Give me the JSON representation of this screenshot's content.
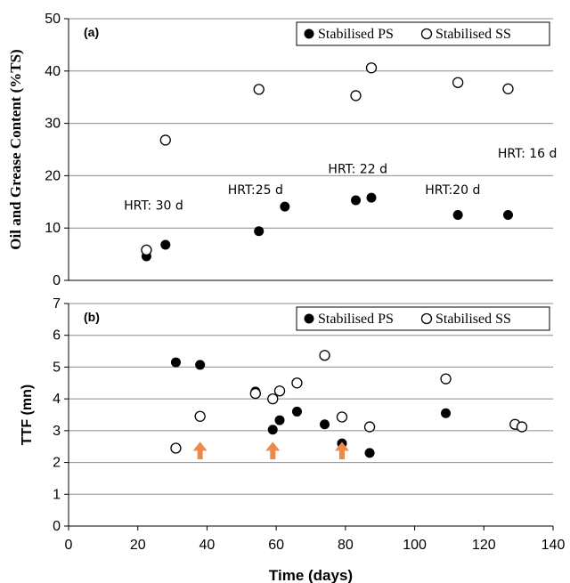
{
  "colors": {
    "filled_marker": "#000000",
    "open_marker_stroke": "#000000",
    "open_marker_fill": "#ffffff",
    "gridline": "#8c8c8c",
    "arrow": "#ed8a4a"
  },
  "chart_data": [
    {
      "type": "scatter",
      "panel_label": "(a)",
      "ylabel": "Oil and Grease Content (%TS)",
      "xlim": [
        0,
        140
      ],
      "ylim": [
        0,
        50
      ],
      "yticks": [
        "0",
        "10",
        "20",
        "30",
        "40",
        "50"
      ],
      "grid": "horizontal",
      "legend_position": "top-right",
      "series": [
        {
          "name": "Stabilised PS",
          "marker": "filled",
          "points": [
            [
              22.5,
              4.6
            ],
            [
              28,
              6.8
            ],
            [
              55,
              9.4
            ],
            [
              62.5,
              14.1
            ],
            [
              83,
              15.3
            ],
            [
              87.5,
              15.8
            ],
            [
              112.5,
              12.5
            ],
            [
              127,
              12.5
            ]
          ]
        },
        {
          "name": "Stabilised SS",
          "marker": "open",
          "points": [
            [
              22.5,
              5.8
            ],
            [
              28,
              26.8
            ],
            [
              55,
              36.5
            ],
            [
              83,
              35.3
            ],
            [
              87.5,
              40.6
            ],
            [
              112.5,
              37.8
            ],
            [
              127,
              36.6
            ]
          ]
        }
      ],
      "annotations": [
        {
          "text": "HRT: 30 d",
          "x": 16,
          "y": 13.5
        },
        {
          "text": "HRT:25 d",
          "x": 46,
          "y": 16.5
        },
        {
          "text": "HRT: 22 d",
          "x": 75,
          "y": 20.5
        },
        {
          "text": "HRT:20 d",
          "x": 103,
          "y": 16.5
        },
        {
          "text": "HRT: 16 d",
          "x": 124,
          "y": 23.5
        }
      ]
    },
    {
      "type": "scatter",
      "panel_label": "(b)",
      "xlabel": "Time (days)",
      "ylabel": "TTF (mn)",
      "xlim": [
        0,
        140
      ],
      "ylim": [
        0,
        7
      ],
      "xticks": [
        "0",
        "20",
        "40",
        "60",
        "80",
        "100",
        "120",
        "140"
      ],
      "yticks": [
        "0",
        "1",
        "2",
        "3",
        "4",
        "5",
        "6",
        "7"
      ],
      "grid": "horizontal",
      "legend_position": "top-right",
      "series": [
        {
          "name": "Stabilised PS",
          "marker": "filled",
          "points": [
            [
              31,
              5.15
            ],
            [
              38,
              5.07
            ],
            [
              54,
              4.23
            ],
            [
              59,
              3.03
            ],
            [
              61,
              3.33
            ],
            [
              66,
              3.6
            ],
            [
              74,
              3.2
            ],
            [
              79,
              2.6
            ],
            [
              87,
              2.3
            ],
            [
              109,
              3.55
            ]
          ]
        },
        {
          "name": "Stabilised SS",
          "marker": "open",
          "points": [
            [
              31,
              2.45
            ],
            [
              38,
              3.45
            ],
            [
              54,
              4.17
            ],
            [
              59,
              4.0
            ],
            [
              61,
              4.25
            ],
            [
              66,
              4.5
            ],
            [
              74,
              5.37
            ],
            [
              79,
              3.43
            ],
            [
              87,
              3.12
            ],
            [
              109,
              4.63
            ],
            [
              129,
              3.2
            ],
            [
              131,
              3.12
            ]
          ]
        }
      ],
      "arrows_at_x": [
        38,
        59,
        79
      ]
    }
  ]
}
